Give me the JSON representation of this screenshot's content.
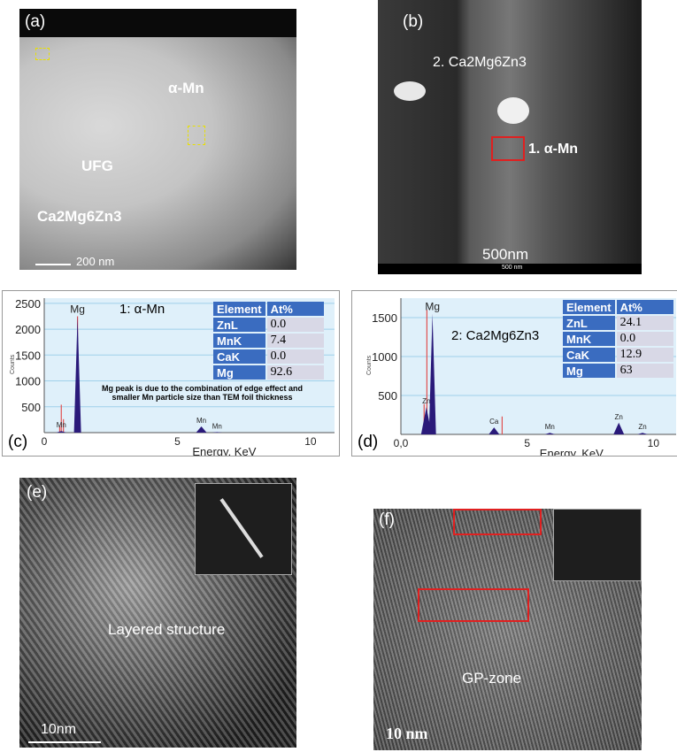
{
  "panel_a": {
    "label": "(a)",
    "annotations": {
      "alpha_mn": "α-Mn",
      "ufg": "UFG",
      "phase": "Ca2Mg6Zn3"
    },
    "scale_bar": "200 nm"
  },
  "panel_b": {
    "label": "(b)",
    "annotations": {
      "phase": "2. Ca2Mg6Zn3",
      "alpha_mn": "1. α-Mn"
    },
    "scale_bar": "500nm",
    "scale_bar_small": "500 nm"
  },
  "panel_e": {
    "label": "(e)",
    "caption": "Layered structure",
    "scale_bar": "10nm"
  },
  "panel_f": {
    "label": "(f)",
    "caption": "GP-zone",
    "scale_bar": "10 nm"
  },
  "chart_data": [
    {
      "type": "line",
      "panel": "(c)",
      "title": "1: α-Mn",
      "xlabel": "Energy, KeV",
      "ylabel": "Counts",
      "xlim": [
        0,
        10.9
      ],
      "ylim": [
        0,
        2600
      ],
      "xticks": [
        "0",
        "5",
        "10"
      ],
      "yticks": [
        "500",
        "1000",
        "1500",
        "2000",
        "2500"
      ],
      "peaks": [
        {
          "label": "Mn",
          "x": 0.64,
          "y": 30
        },
        {
          "label": "Mg",
          "x": 1.25,
          "y": 2250
        },
        {
          "label": "Mn",
          "x": 5.9,
          "y": 120
        },
        {
          "label": "Mn",
          "x": 6.49,
          "y": 10
        }
      ],
      "markers": [
        {
          "label": "Mn",
          "x": 0.64,
          "y": 540
        },
        {
          "label": "Mn",
          "x": 0.72,
          "y": 260
        },
        {
          "label": "Mn",
          "x": 0.58,
          "y": 120
        },
        {
          "label": "Mg",
          "x": 1.25,
          "y": 2250
        }
      ],
      "table": {
        "headers": [
          "Element",
          "At%"
        ],
        "rows": [
          [
            "ZnL",
            "0.0"
          ],
          [
            "MnK",
            "7.4"
          ],
          [
            "CaK",
            "0.0"
          ],
          [
            "Mg",
            "92.6"
          ]
        ]
      },
      "note": [
        "Mg peak is due to the combination of edge effect and",
        "smaller Mn particle size than TEM foil thickness"
      ]
    },
    {
      "type": "line",
      "panel": "(d)",
      "title": "2: Ca2Mg6Zn3",
      "xlabel": "Energy, KeV",
      "ylabel": "Counts",
      "xlim": [
        0,
        10.9
      ],
      "ylim": [
        0,
        1750
      ],
      "xticks": [
        "0,0",
        "5",
        "10"
      ],
      "yticks": [
        "500",
        "1000",
        "1500"
      ],
      "peaks": [
        {
          "label": "Zn",
          "x": 1.01,
          "y": 350
        },
        {
          "label": "Mg",
          "x": 1.25,
          "y": 1550
        },
        {
          "label": "Ca",
          "x": 3.69,
          "y": 90
        },
        {
          "label": "Mn",
          "x": 5.9,
          "y": 20
        },
        {
          "label": "Zn",
          "x": 8.63,
          "y": 150
        },
        {
          "label": "Zn",
          "x": 9.57,
          "y": 20
        }
      ],
      "markers": [
        {
          "label": "Zn",
          "x": 0.92,
          "y": 390
        },
        {
          "label": "Zn",
          "x": 1.03,
          "y": 1600
        },
        {
          "label": "Ca",
          "x": 4.01,
          "y": 230
        },
        {
          "label": "Mn",
          "x": 6.49,
          "y": 0
        }
      ],
      "table": {
        "headers": [
          "Element",
          "At%"
        ],
        "rows": [
          [
            "ZnL",
            "24.1"
          ],
          [
            "MnK",
            "0.0"
          ],
          [
            "CaK",
            "12.9"
          ],
          [
            "Mg",
            "63"
          ]
        ]
      },
      "note": []
    }
  ],
  "colors": {
    "peak_fill": "#2a1a7a",
    "marker": "#e05050",
    "plot_bg": "#dff0fa",
    "grid": "#9fd0ea",
    "table_header": "#3a6cc0"
  }
}
